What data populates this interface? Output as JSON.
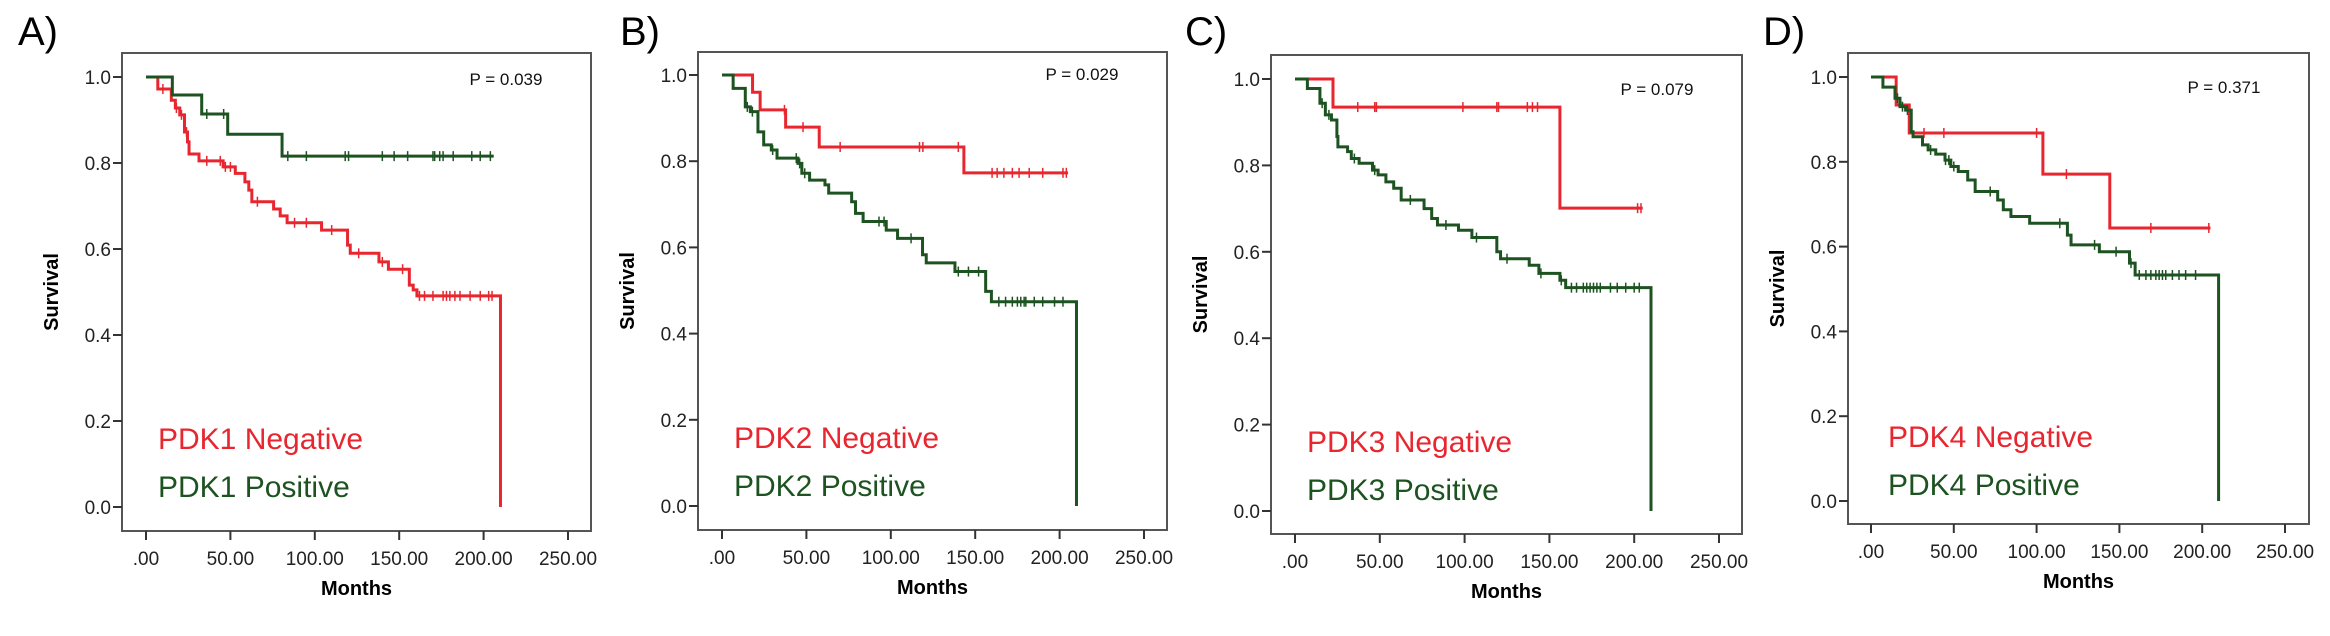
{
  "colors": {
    "negative": "#E8262F",
    "positive": "#1D5321"
  },
  "chart_data": [
    {
      "type": "line",
      "subtype": "kaplan-meier",
      "panel_label": "A)",
      "title": "",
      "xlabel": "Months",
      "ylabel": "Survival",
      "xlim": [
        0,
        250
      ],
      "ylim": [
        0,
        1
      ],
      "x_ticks": [
        ".00",
        "50.00",
        "100.00",
        "150.00",
        "200.00",
        "250.00"
      ],
      "x_tick_values": [
        0,
        50,
        100,
        150,
        200,
        250
      ],
      "y_ticks": [
        "0.0",
        "0.2",
        "0.4",
        "0.6",
        "0.8",
        "1.0"
      ],
      "y_tick_values": [
        0,
        0.2,
        0.4,
        0.6,
        0.8,
        1.0
      ],
      "annotation": "P = 0.039",
      "legend_placement": "bottom-left",
      "grid": false,
      "series": [
        {
          "name": "PDK1 Negative",
          "color_key": "negative",
          "steps": [
            [
              0,
              1.0
            ],
            [
              7,
              0.972
            ],
            [
              15,
              0.946
            ],
            [
              17.4,
              0.928
            ],
            [
              20,
              0.912
            ],
            [
              22.8,
              0.872
            ],
            [
              24.6,
              0.849
            ],
            [
              25.5,
              0.821
            ],
            [
              31.4,
              0.805
            ],
            [
              45.7,
              0.791
            ],
            [
              52.9,
              0.776
            ],
            [
              58.6,
              0.756
            ],
            [
              60.9,
              0.737
            ],
            [
              62.7,
              0.71
            ],
            [
              75.6,
              0.693
            ],
            [
              79.5,
              0.677
            ],
            [
              83.6,
              0.661
            ],
            [
              104,
              0.644
            ],
            [
              119.4,
              0.609
            ],
            [
              121,
              0.59
            ],
            [
              138,
              0.57
            ],
            [
              143.6,
              0.553
            ],
            [
              156,
              0.516
            ],
            [
              158.3,
              0.505
            ],
            [
              160.5,
              0.491
            ],
            [
              210,
              0.0
            ]
          ],
          "end": 210,
          "censored": [
            10,
            18,
            21,
            24,
            36,
            44,
            47,
            50,
            66,
            88,
            95,
            110,
            126,
            140,
            152,
            162,
            165,
            170,
            176,
            178,
            180,
            183,
            186,
            192,
            198,
            203,
            205
          ]
        },
        {
          "name": "PDK1 Positive",
          "color_key": "positive",
          "steps": [
            [
              0,
              1.0
            ],
            [
              15.6,
              0.958
            ],
            [
              33,
              0.914
            ],
            [
              48.4,
              0.867
            ],
            [
              80.6,
              0.816
            ]
          ],
          "end": 206,
          "censored": [
            36,
            46,
            84,
            95,
            118,
            120,
            140,
            147,
            155,
            170,
            171,
            174,
            176,
            182,
            193,
            198,
            204
          ]
        }
      ]
    },
    {
      "type": "line",
      "subtype": "kaplan-meier",
      "panel_label": "B)",
      "title": "",
      "xlabel": "Months",
      "ylabel": "Survival",
      "xlim": [
        0,
        250
      ],
      "ylim": [
        0,
        1
      ],
      "x_ticks": [
        ".00",
        "50.00",
        "100.00",
        "150.00",
        "200.00",
        "250.00"
      ],
      "x_tick_values": [
        0,
        50,
        100,
        150,
        200,
        250
      ],
      "y_ticks": [
        "0.0",
        "0.2",
        "0.4",
        "0.6",
        "0.8",
        "1.0"
      ],
      "y_tick_values": [
        0,
        0.2,
        0.4,
        0.6,
        0.8,
        1.0
      ],
      "annotation": "P = 0.029",
      "legend_placement": "bottom-left",
      "grid": false,
      "series": [
        {
          "name": "PDK2 Negative",
          "color_key": "negative",
          "steps": [
            [
              0,
              1.0
            ],
            [
              18.1,
              0.96
            ],
            [
              22.6,
              0.919
            ],
            [
              37.7,
              0.879
            ],
            [
              57.6,
              0.833
            ],
            [
              143.3,
              0.773
            ]
          ],
          "end": 205,
          "censored": [
            37,
            48,
            70,
            117,
            119,
            140,
            160,
            163,
            167,
            172,
            176,
            182,
            190,
            202,
            204
          ]
        },
        {
          "name": "PDK2 Positive",
          "color_key": "positive",
          "steps": [
            [
              0,
              1.0
            ],
            [
              6.6,
              0.969
            ],
            [
              13.8,
              0.926
            ],
            [
              16.8,
              0.915
            ],
            [
              21.3,
              0.868
            ],
            [
              24.7,
              0.838
            ],
            [
              29.2,
              0.826
            ],
            [
              32.6,
              0.807
            ],
            [
              45,
              0.795
            ],
            [
              47.3,
              0.772
            ],
            [
              51.9,
              0.756
            ],
            [
              61,
              0.745
            ],
            [
              63.2,
              0.726
            ],
            [
              76.8,
              0.706
            ],
            [
              79.1,
              0.679
            ],
            [
              83.6,
              0.66
            ],
            [
              97.3,
              0.64
            ],
            [
              104,
              0.621
            ],
            [
              118.8,
              0.583
            ],
            [
              121,
              0.564
            ],
            [
              138,
              0.544
            ],
            [
              156.2,
              0.498
            ],
            [
              159.6,
              0.474
            ],
            [
              210,
              0.0
            ]
          ],
          "end": 210,
          "censored": [
            15,
            18,
            30,
            44,
            46,
            49,
            93,
            96,
            112,
            140,
            146,
            152,
            164,
            168,
            172,
            175,
            177,
            179,
            180,
            185,
            190,
            197,
            202
          ]
        }
      ]
    },
    {
      "type": "line",
      "subtype": "kaplan-meier",
      "panel_label": "C)",
      "title": "",
      "xlabel": "Months",
      "ylabel": "Survival",
      "xlim": [
        0,
        250
      ],
      "ylim": [
        0,
        1
      ],
      "x_ticks": [
        ".00",
        "50.00",
        "100.00",
        "150.00",
        "200.00",
        "250.00"
      ],
      "x_tick_values": [
        0,
        50,
        100,
        150,
        200,
        250
      ],
      "y_ticks": [
        "0.0",
        "0.2",
        "0.4",
        "0.6",
        "0.8",
        "1.0"
      ],
      "y_tick_values": [
        0,
        0.2,
        0.4,
        0.6,
        0.8,
        1.0
      ],
      "annotation": "P = 0.079",
      "legend_placement": "bottom-left",
      "grid": false,
      "series": [
        {
          "name": "PDK3 Negative",
          "color_key": "negative",
          "steps": [
            [
              0,
              1.0
            ],
            [
              22.4,
              0.935
            ],
            [
              156.2,
              0.701
            ]
          ],
          "end": 205,
          "censored": [
            37,
            47,
            48,
            99,
            119,
            120,
            137,
            140,
            143,
            202,
            204
          ]
        },
        {
          "name": "PDK3 Positive",
          "color_key": "positive",
          "steps": [
            [
              0,
              1.0
            ],
            [
              7.3,
              0.978
            ],
            [
              14.7,
              0.944
            ],
            [
              17.9,
              0.917
            ],
            [
              21.5,
              0.905
            ],
            [
              24.7,
              0.867
            ],
            [
              25.3,
              0.843
            ],
            [
              31,
              0.832
            ],
            [
              33.2,
              0.816
            ],
            [
              37.8,
              0.805
            ],
            [
              45.7,
              0.789
            ],
            [
              49,
              0.778
            ],
            [
              53.6,
              0.762
            ],
            [
              58.2,
              0.747
            ],
            [
              62.6,
              0.72
            ],
            [
              76.1,
              0.7
            ],
            [
              80.6,
              0.677
            ],
            [
              84,
              0.662
            ],
            [
              96.4,
              0.65
            ],
            [
              104.3,
              0.633
            ],
            [
              119,
              0.6
            ],
            [
              121.2,
              0.584
            ],
            [
              138.1,
              0.569
            ],
            [
              143.8,
              0.55
            ],
            [
              156.2,
              0.534
            ],
            [
              159.6,
              0.517
            ],
            [
              209.9,
              0.0
            ]
          ],
          "end": 209.9,
          "censored": [
            16,
            20,
            35,
            47,
            68,
            89,
            107,
            125,
            145,
            157,
            163,
            166,
            170,
            172,
            174,
            176,
            178,
            180,
            186,
            190,
            195,
            200,
            203
          ]
        }
      ]
    },
    {
      "type": "line",
      "subtype": "kaplan-meier",
      "panel_label": "D)",
      "title": "",
      "xlabel": "Months",
      "ylabel": "Survival",
      "xlim": [
        0,
        250
      ],
      "ylim": [
        0,
        1
      ],
      "x_ticks": [
        ".00",
        "50.00",
        "100.00",
        "150.00",
        "200.00",
        "250.00"
      ],
      "x_tick_values": [
        0,
        50,
        100,
        150,
        200,
        250
      ],
      "y_ticks": [
        "0.0",
        "0.2",
        "0.4",
        "0.6",
        "0.8",
        "1.0"
      ],
      "y_tick_values": [
        0,
        0.2,
        0.4,
        0.6,
        0.8,
        1.0
      ],
      "annotation": "P = 0.371",
      "legend_placement": "bottom-left",
      "grid": false,
      "series": [
        {
          "name": "PDK4 Negative",
          "color_key": "negative",
          "steps": [
            [
              0,
              1.0
            ],
            [
              15.2,
              0.934
            ],
            [
              23.1,
              0.868
            ],
            [
              103.8,
              0.771
            ],
            [
              144.2,
              0.644
            ]
          ],
          "end": 205,
          "censored": [
            32,
            44,
            100,
            118,
            169,
            204
          ]
        },
        {
          "name": "PDK4 Positive",
          "color_key": "positive",
          "steps": [
            [
              0,
              1.0
            ],
            [
              7.2,
              0.976
            ],
            [
              14.5,
              0.95
            ],
            [
              17.5,
              0.93
            ],
            [
              20.9,
              0.922
            ],
            [
              24.3,
              0.871
            ],
            [
              25.4,
              0.859
            ],
            [
              31.1,
              0.84
            ],
            [
              34.5,
              0.828
            ],
            [
              39.1,
              0.818
            ],
            [
              44.7,
              0.804
            ],
            [
              48.2,
              0.789
            ],
            [
              52.7,
              0.777
            ],
            [
              58.4,
              0.757
            ],
            [
              62.9,
              0.73
            ],
            [
              76.5,
              0.71
            ],
            [
              79.9,
              0.687
            ],
            [
              84.5,
              0.671
            ],
            [
              95.8,
              0.655
            ],
            [
              118.6,
              0.627
            ],
            [
              120.8,
              0.604
            ],
            [
              137.9,
              0.588
            ],
            [
              156.1,
              0.561
            ],
            [
              159.5,
              0.533
            ],
            [
              209.9,
              0.0
            ]
          ],
          "end": 209.9,
          "censored": [
            16,
            19,
            22,
            36,
            45,
            47,
            50,
            72,
            114,
            135,
            148,
            157,
            162,
            166,
            169,
            172,
            174,
            176,
            178,
            182,
            186,
            190,
            196
          ]
        }
      ]
    }
  ]
}
